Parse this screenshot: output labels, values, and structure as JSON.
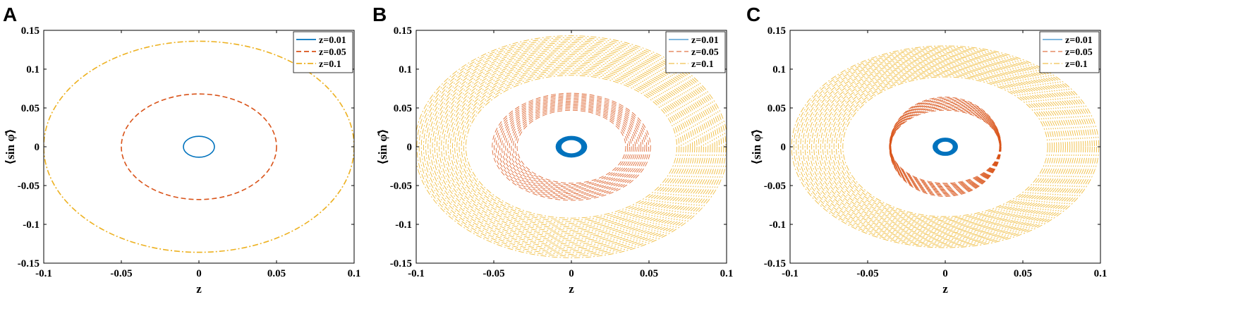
{
  "chart_data": [
    {
      "panel": "A",
      "type": "line",
      "xlabel": "z",
      "ylabel": "⟨sin φ̂⟩",
      "xlim": [
        -0.1,
        0.1
      ],
      "ylim": [
        -0.15,
        0.15
      ],
      "xticks": [
        "-0.1",
        "-0.05",
        "0",
        "0.05",
        "0.1"
      ],
      "yticks": [
        "0.15",
        "0.1",
        "0.05",
        "0",
        "-0.05",
        "-0.1",
        "-0.15"
      ],
      "legend_position": "top-right",
      "series": [
        {
          "name": "z=0.01",
          "color": "#0072BD",
          "style": "solid",
          "rx": 0.01,
          "ry": 0.0135,
          "bands": 1
        },
        {
          "name": "z=0.05",
          "color": "#D95319",
          "style": "dashed",
          "rx": 0.05,
          "ry": 0.068,
          "bands": 1
        },
        {
          "name": "z=0.1",
          "color": "#EDB120",
          "style": "dashdot",
          "rx": 0.1,
          "ry": 0.136,
          "bands": 1
        }
      ]
    },
    {
      "panel": "B",
      "type": "line",
      "xlabel": "z",
      "ylabel": "⟨sin φ̂⟩",
      "xlim": [
        -0.1,
        0.1
      ],
      "ylim": [
        -0.15,
        0.15
      ],
      "xticks": [
        "-0.1",
        "-0.05",
        "0",
        "0.05",
        "0.1"
      ],
      "yticks": [
        "0.15",
        "0.1",
        "0.05",
        "0",
        "-0.05",
        "-0.1",
        "-0.15"
      ],
      "legend_position": "top-right",
      "series": [
        {
          "name": "z=0.01",
          "color": "#0072BD",
          "style": "solid",
          "rx_range": [
            0.0068,
            0.0098
          ],
          "ry_range": [
            0.0092,
            0.0132
          ],
          "bands": 8
        },
        {
          "name": "z=0.05",
          "color": "#D95319",
          "style": "dashed",
          "rx_range": [
            0.035,
            0.051
          ],
          "ry_range": [
            0.047,
            0.069
          ],
          "bands": 14
        },
        {
          "name": "z=0.1",
          "color": "#EDB120",
          "style": "dashdot",
          "rx_range": [
            0.068,
            0.101
          ],
          "ry_range": [
            0.092,
            0.143
          ],
          "bands": 24
        }
      ]
    },
    {
      "panel": "C",
      "type": "line",
      "xlabel": "z",
      "ylabel": "⟨sin φ̂⟩",
      "xlim": [
        -0.1,
        0.1
      ],
      "ylim": [
        -0.15,
        0.15
      ],
      "xticks": [
        "-0.1",
        "-0.05",
        "0",
        "0.05",
        "0.1"
      ],
      "yticks": [
        "0.15",
        "0.1",
        "0.05",
        "0",
        "-0.05",
        "-0.1",
        "-0.15"
      ],
      "legend_position": "top-right",
      "series": [
        {
          "name": "z=0.01",
          "color": "#0072BD",
          "style": "solid",
          "rx_range": [
            0.0052,
            0.0078
          ],
          "ry_range": [
            0.0072,
            0.011
          ],
          "bands": 8
        },
        {
          "name": "z=0.05",
          "color": "#D95319",
          "style": "dashed",
          "rx_range": [
            0.035,
            0.036
          ],
          "ry_range": [
            0.047,
            0.064
          ],
          "bands": 16
        },
        {
          "name": "z=0.1",
          "color": "#EDB120",
          "style": "dashdot",
          "rx_range": [
            0.066,
            0.099
          ],
          "ry_range": [
            0.09,
            0.13
          ],
          "bands": 24
        }
      ]
    }
  ]
}
